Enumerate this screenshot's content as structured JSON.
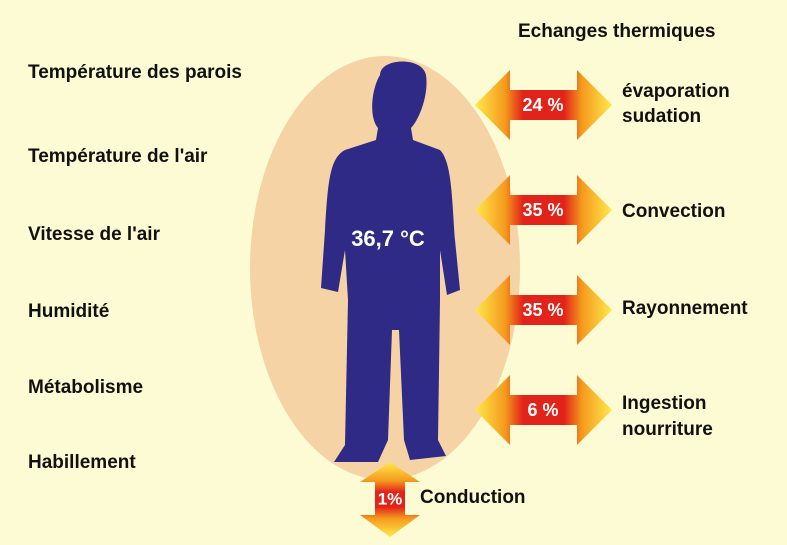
{
  "title": "Echanges thermiques",
  "factors": [
    "Température des parois",
    "Température de l'air",
    "Vitesse de l'air",
    "Humidité",
    "Métabolisme",
    "Habillement"
  ],
  "body_temperature": "36,7 °C",
  "exchanges": [
    {
      "percent": "24 %",
      "label": [
        "évaporation",
        "sudation"
      ]
    },
    {
      "percent": "35 %",
      "label": [
        "Convection"
      ]
    },
    {
      "percent": "35 %",
      "label": [
        "Rayonnement"
      ]
    },
    {
      "percent": "6 %",
      "label": [
        "Ingestion",
        "nourriture"
      ]
    }
  ],
  "conduction": {
    "percent": "1%",
    "label": "Conduction"
  }
}
